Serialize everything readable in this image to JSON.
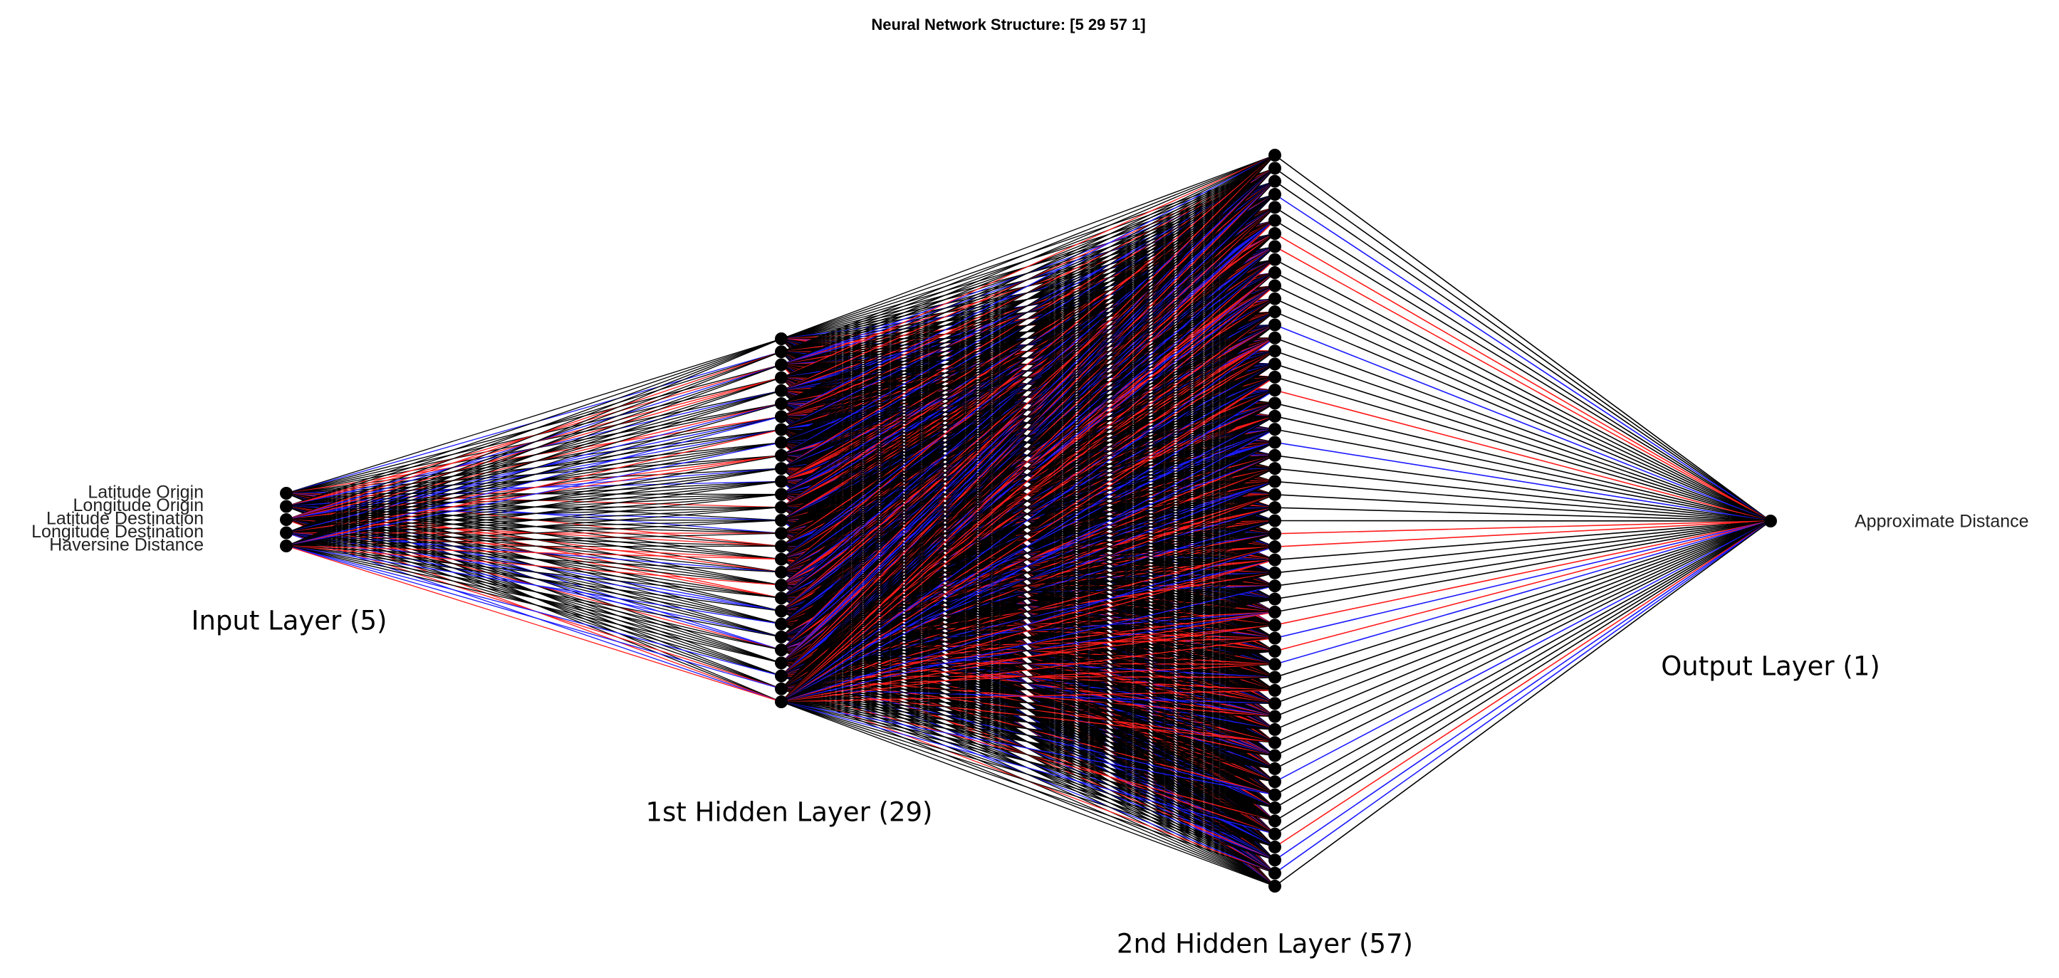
{
  "title": "Neural Network Structure: [5  29  57   1]",
  "input_labels": [
    "Latitude Origin",
    "Longitude Origin",
    "Latitude Destination",
    "Longitude Destination",
    "Haversine Distance"
  ],
  "output_labels": [
    "Approximate Distance"
  ],
  "layers": [
    {
      "label": "Input Layer (5)",
      "size": 5
    },
    {
      "label": "1st Hidden Layer (29)",
      "size": 29
    },
    {
      "label": "2nd Hidden Layer (57)",
      "size": 57
    },
    {
      "label": "Output Layer (1)",
      "size": 1
    }
  ]
}
